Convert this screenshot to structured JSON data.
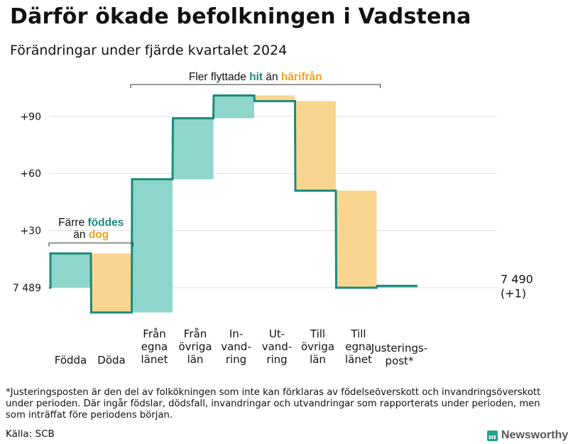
{
  "title": "Därför ökade befolkningen i Vadstena",
  "subtitle": "Förändringar under fjärde kvartalet 2024",
  "footnote": "*Justeringsposten är den del av folkökningen som inte kan förklaras av födelseöverskott och invandringsöverskott under perioden. Där ingår födslar, dödsfall, invandringar och utvandringar som rapporterats under perioden, men som inträffat före periodens början.",
  "source": "Källa: SCB",
  "brand": {
    "name": "Newsworthy",
    "icon": "bar-chart-icon"
  },
  "colors": {
    "increase": "#8ed6cb",
    "decrease": "#fad58f",
    "line": "#1a8a7c",
    "accent_green": "#1a8a7c",
    "accent_orange": "#f0a21c",
    "grid": "#dddddd"
  },
  "chart_data": {
    "type": "waterfall",
    "title": "Därför ökade befolkningen i Vadstena",
    "subtitle": "Förändringar under fjärde kvartalet 2024",
    "start_value": 7489,
    "start_label": "7 489",
    "end_label": "7 490",
    "end_change_label": "(+1)",
    "yticks": [
      {
        "value": 30,
        "label": "+30"
      },
      {
        "value": 60,
        "label": "+60"
      },
      {
        "value": 90,
        "label": "+90"
      }
    ],
    "ylim": [
      -15,
      110
    ],
    "categories": [
      {
        "name": "Födda",
        "label": [
          "Födda"
        ],
        "change": 18
      },
      {
        "name": "Döda",
        "label": [
          "Döda"
        ],
        "change": -31
      },
      {
        "name": "Från egna länet",
        "label": [
          "Från",
          "egna",
          "länet"
        ],
        "change": 70
      },
      {
        "name": "Från övriga län",
        "label": [
          "Från",
          "övriga",
          "län"
        ],
        "change": 32
      },
      {
        "name": "Invandring",
        "label": [
          "In-",
          "vand-",
          "ring"
        ],
        "change": 12
      },
      {
        "name": "Utvandring",
        "label": [
          "Ut-",
          "vand-",
          "ring"
        ],
        "change": -3
      },
      {
        "name": "Till övriga län",
        "label": [
          "Till",
          "övriga",
          "län"
        ],
        "change": -47
      },
      {
        "name": "Till egna länet",
        "label": [
          "Till",
          "egna",
          "länet"
        ],
        "change": -51
      },
      {
        "name": "Justeringspost*",
        "label": [
          "Justerings-",
          "post*"
        ],
        "change": 1
      }
    ],
    "annotations": [
      {
        "name": "births-vs-deaths",
        "from": 0,
        "to": 1,
        "line1": [
          {
            "text": "Färre ",
            "color": "text"
          },
          {
            "text": "föddes",
            "color": "increase"
          }
        ],
        "line2": [
          {
            "text": "än ",
            "color": "text"
          },
          {
            "text": "dog",
            "color": "decrease"
          }
        ]
      },
      {
        "name": "migration",
        "from": 2,
        "to": 7,
        "line1": [
          {
            "text": "Fler flyttade ",
            "color": "text"
          },
          {
            "text": "hit",
            "color": "increase"
          },
          {
            "text": " än ",
            "color": "text"
          },
          {
            "text": "härifrån",
            "color": "decrease"
          }
        ]
      }
    ]
  }
}
